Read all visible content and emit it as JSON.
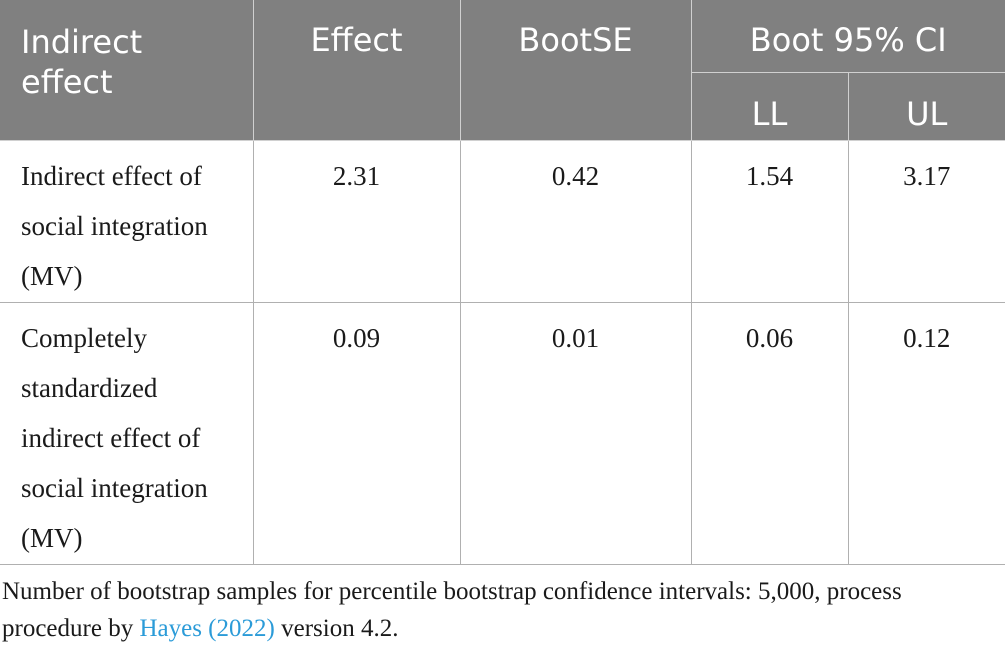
{
  "table": {
    "headers": {
      "indirect_effect": "Indirect\neffect",
      "effect": "Effect",
      "bootse": "BootSE",
      "boot_ci": "Boot 95% CI",
      "ll": "LL",
      "ul": "UL"
    },
    "rows": [
      {
        "label": "Indirect effect of social integration (MV)",
        "effect": "2.31",
        "bootse": "0.42",
        "ll": "1.54",
        "ul": "3.17"
      },
      {
        "label": "Completely standardized indirect effect of social integration (MV)",
        "effect": "0.09",
        "bootse": "0.01",
        "ll": "0.06",
        "ul": "0.12"
      }
    ]
  },
  "footnote": {
    "before": "Number of bootstrap samples for percentile bootstrap confidence intervals: 5,000, process procedure by ",
    "reference": "Hayes (2022)",
    "after": " version 4.2."
  },
  "colors": {
    "header_bg": "#808080",
    "header_text": "#ffffff",
    "link": "#2b9bd8"
  }
}
